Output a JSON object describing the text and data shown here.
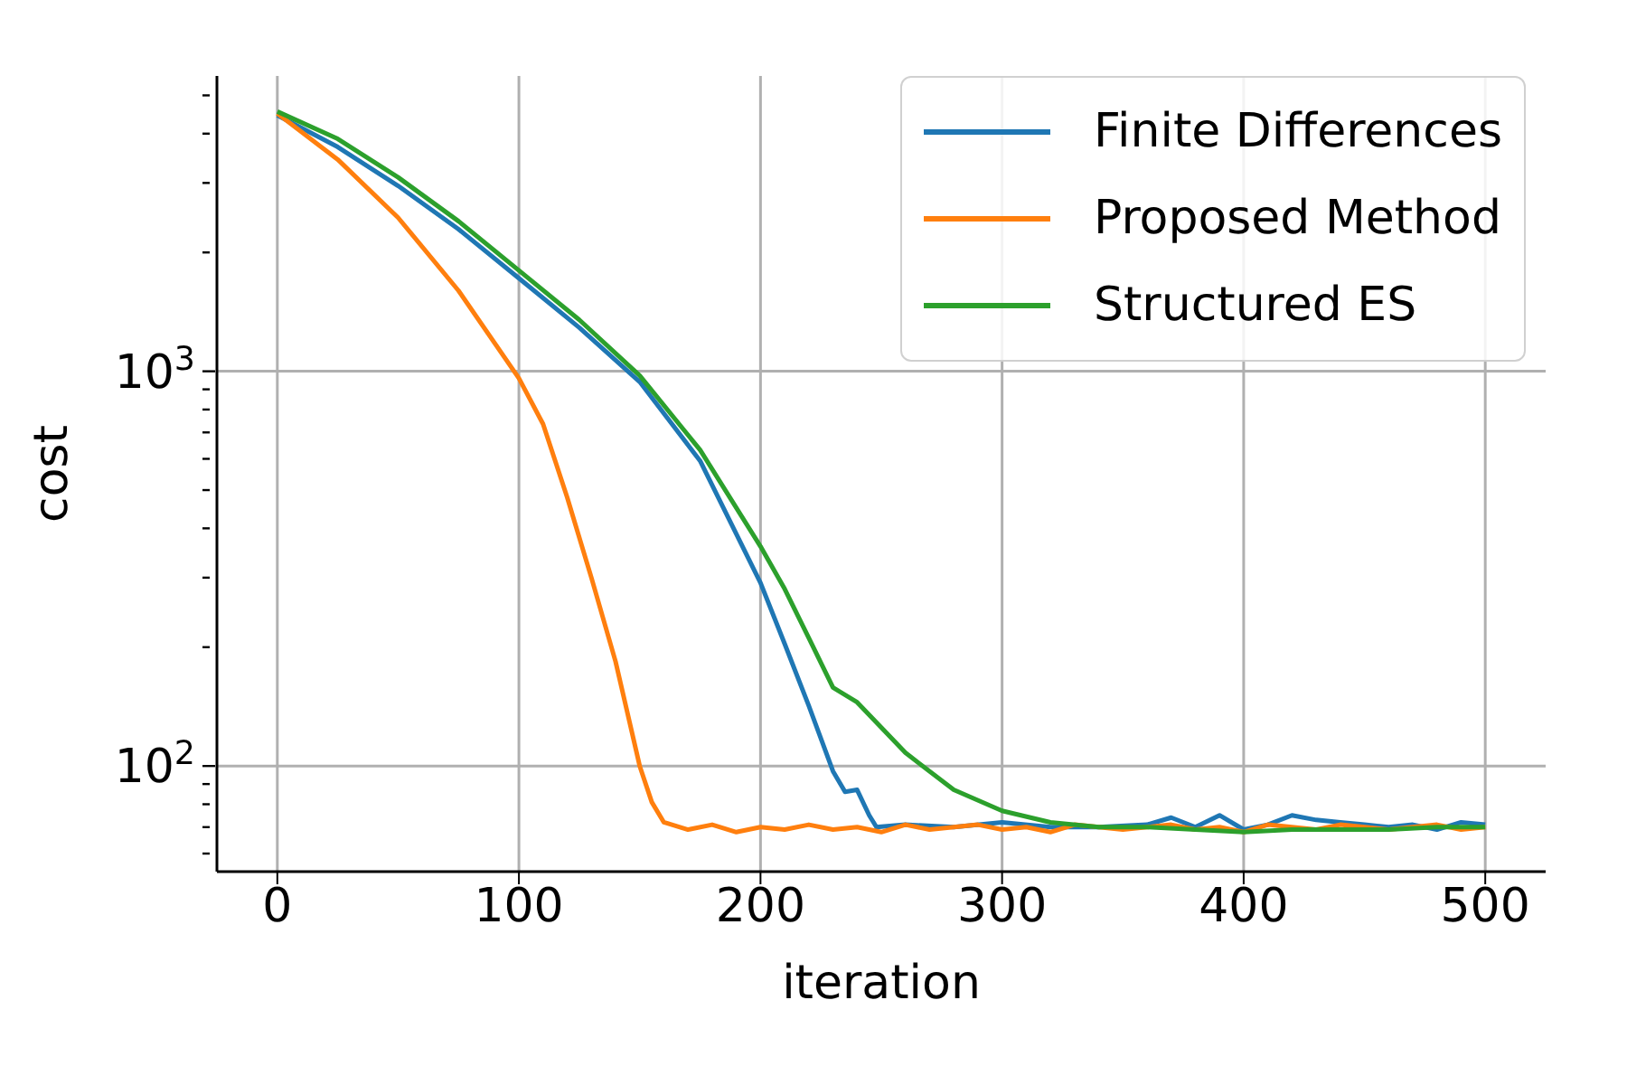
{
  "chart_data": {
    "type": "line",
    "xlabel": "iteration",
    "ylabel": "cost",
    "log": "y",
    "grid": true,
    "legend": "top right",
    "line_style": "solid",
    "marker": "none",
    "xlim": [
      -25,
      525
    ],
    "xticks": [
      0,
      100,
      200,
      300,
      400,
      500
    ],
    "ylim": [
      54,
      5600
    ],
    "yticks": [
      {
        "value": 60,
        "label": null
      },
      {
        "value": 70,
        "label": null
      },
      {
        "value": 80,
        "label": null
      },
      {
        "value": 90,
        "label": null
      },
      {
        "value": 100,
        "label": "10$^{2}$"
      },
      {
        "value": 200,
        "label": null
      },
      {
        "value": 300,
        "label": null
      },
      {
        "value": 400,
        "label": null
      },
      {
        "value": 500,
        "label": null
      },
      {
        "value": 600,
        "label": null
      },
      {
        "value": 700,
        "label": null
      },
      {
        "value": 800,
        "label": null
      },
      {
        "value": 900,
        "label": null
      },
      {
        "value": 1000,
        "label": "10$^{3}$"
      },
      {
        "value": 2000,
        "label": null
      },
      {
        "value": 3000,
        "label": null
      },
      {
        "value": 4000,
        "label": null
      },
      {
        "value": 5000,
        "label": null
      }
    ],
    "series": [
      {
        "name": "Finite Differences",
        "color": "#1f77b4",
        "x": [
          0,
          25,
          50,
          75,
          100,
          125,
          150,
          175,
          200,
          210,
          220,
          230,
          235,
          240,
          245,
          248,
          260,
          280,
          300,
          320,
          340,
          360,
          370,
          380,
          390,
          400,
          410,
          420,
          430,
          440,
          450,
          460,
          470,
          480,
          490,
          500
        ],
        "values": [
          4450,
          3700,
          2950,
          2290,
          1720,
          1290,
          940,
          593,
          291,
          204,
          142,
          97,
          86,
          87,
          75,
          70,
          71,
          70,
          72,
          70,
          70,
          71,
          74,
          70,
          75,
          69,
          71,
          75,
          73,
          72,
          71,
          70,
          71,
          69,
          72,
          71
        ]
      },
      {
        "name": "Proposed Method",
        "color": "#ff7f0e",
        "x": [
          0,
          25,
          50,
          75,
          100,
          110,
          120,
          130,
          140,
          150,
          155,
          160,
          170,
          180,
          190,
          200,
          210,
          220,
          230,
          240,
          250,
          260,
          270,
          280,
          290,
          300,
          310,
          320,
          330,
          340,
          350,
          360,
          370,
          380,
          390,
          400,
          410,
          420,
          430,
          440,
          450,
          460,
          470,
          480,
          490,
          500
        ],
        "values": [
          4500,
          3440,
          2450,
          1600,
          960,
          735,
          479,
          300,
          184,
          100,
          81,
          72,
          69,
          71,
          68,
          70,
          69,
          71,
          69,
          70,
          68,
          71,
          69,
          70,
          71,
          69,
          70,
          68,
          71,
          70,
          69,
          70,
          71,
          69,
          70,
          68,
          71,
          70,
          69,
          71,
          70,
          69,
          70,
          71,
          69,
          70
        ]
      },
      {
        "name": "Structured ES",
        "color": "#2ca02c",
        "x": [
          0,
          25,
          50,
          75,
          100,
          125,
          150,
          175,
          200,
          210,
          220,
          230,
          240,
          260,
          280,
          300,
          320,
          340,
          360,
          380,
          400,
          420,
          440,
          460,
          480,
          500
        ],
        "values": [
          4550,
          3880,
          3100,
          2400,
          1800,
          1350,
          975,
          632,
          360,
          281,
          211,
          158,
          145,
          108,
          87,
          77,
          72,
          70,
          70,
          69,
          68,
          69,
          69,
          69,
          70,
          70
        ]
      }
    ]
  }
}
